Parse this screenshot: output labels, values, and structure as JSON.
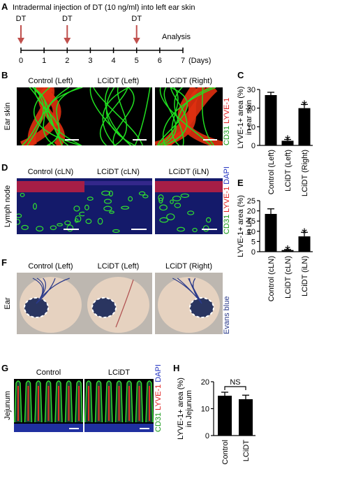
{
  "panel_labels": [
    "A",
    "B",
    "C",
    "D",
    "E",
    "F",
    "G",
    "H"
  ],
  "timeline": {
    "title": "Intradermal injection of DT (10 ng/ml) into left ear skin",
    "xlim": [
      0,
      7
    ],
    "xticks": [
      0,
      1,
      2,
      3,
      4,
      5,
      6,
      7
    ],
    "unit_label": "(Days)",
    "injection_label": "DT",
    "injections": [
      0,
      2,
      5
    ],
    "analysis_label": "Analysis",
    "arrow_color": "#c0504d"
  },
  "images": [
    {
      "row_label": "Ear skin",
      "columns": [
        "Control (Left)",
        "LCiDT (Left)",
        "LCiDT (Right)"
      ],
      "stains": [
        {
          "text": "CD31",
          "color": "#1a9a1a"
        },
        {
          "text": "LYVE-1",
          "color": "#e02020"
        }
      ]
    },
    {
      "row_label": "Lymph node",
      "columns": [
        "Control (cLN)",
        "LCiDT (cLN)",
        "LCiDT (iLN)"
      ],
      "stains": [
        {
          "text": "CD31",
          "color": "#1a9a1a"
        },
        {
          "text": "LYVE-1",
          "color": "#e02020"
        },
        {
          "text": "DAPI",
          "color": "#2030c0"
        }
      ]
    },
    {
      "row_label": "Ear",
      "columns": [
        "Control (Left)",
        "LCiDT (Left)",
        "LCiDT (Right)"
      ],
      "stains": [
        {
          "text": "Evans blue",
          "color": "#2a3a8a"
        }
      ]
    },
    {
      "row_label": "Jejunum",
      "columns": [
        "Control",
        "LCiDT"
      ],
      "stains": [
        {
          "text": "CD31",
          "color": "#1a9a1a"
        },
        {
          "text": "LYVE-1",
          "color": "#e02020"
        },
        {
          "text": "DAPI",
          "color": "#2030c0"
        }
      ]
    }
  ],
  "chart_data": [
    {
      "type": "bar",
      "ylabel": [
        "LYVE-1+ area (%)",
        "in ear skin"
      ],
      "categories": [
        "Control (Left)",
        "LCiDT (Left)",
        "LCiDT (Right)"
      ],
      "values": [
        27,
        2.5,
        20
      ],
      "errors": [
        1.5,
        0.7,
        2
      ],
      "significance": [
        null,
        "*",
        "*"
      ],
      "color": "#000000",
      "ylim": [
        0,
        30
      ],
      "yticks": [
        0,
        10,
        20,
        30
      ]
    },
    {
      "type": "bar",
      "ylabel": [
        "LYVE-1+ area (%)",
        "in LN"
      ],
      "categories": [
        "Control (cLN)",
        "LCiDT (cLN)",
        "LCiDT (iLN)"
      ],
      "values": [
        18.5,
        0.8,
        7.5
      ],
      "errors": [
        2.5,
        0.3,
        2
      ],
      "significance": [
        null,
        "*",
        "*"
      ],
      "color": "#000000",
      "ylim": [
        0,
        25
      ],
      "yticks": [
        0,
        5,
        10,
        15,
        20,
        25
      ]
    },
    {
      "type": "bar",
      "ylabel": [
        "LYVE-1+ area (%)",
        "in Jejunum"
      ],
      "categories": [
        "Control",
        "LCiDT"
      ],
      "values": [
        14.8,
        13.5
      ],
      "errors": [
        1.3,
        1.5
      ],
      "comparison_label": "NS",
      "color": "#000000",
      "ylim": [
        0,
        20
      ],
      "yticks": [
        0,
        10,
        20
      ]
    }
  ]
}
